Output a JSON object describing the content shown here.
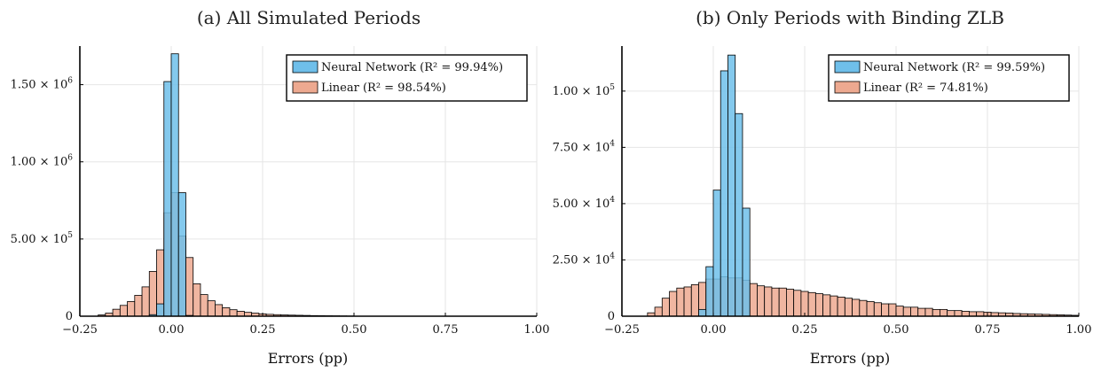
{
  "chart_data": [
    {
      "type": "bar",
      "title": "(a) All Simulated Periods",
      "xlabel": "Errors (pp)",
      "ylabel": "",
      "xlim": [
        -0.25,
        1.0
      ],
      "ylim": [
        0,
        1750000
      ],
      "xticks": [
        -0.25,
        0,
        0.25,
        0.5,
        0.75,
        1.0
      ],
      "xtick_labels": [
        "−0.25",
        "0.00",
        "0.25",
        "0.50",
        "0.75",
        "1.00"
      ],
      "yticks": [
        0,
        500000,
        1000000,
        1500000
      ],
      "ytick_mantissas": [
        "0",
        "5.00 × 10",
        "1.00 × 10",
        "1.50 × 10"
      ],
      "ytick_exponents": [
        "",
        "5",
        "6",
        "6"
      ],
      "grid": true,
      "legend_position": "top-right",
      "bin_width": 0.02,
      "series": [
        {
          "name": "Neural Network (R² = 99.94%)",
          "color": "#6fbfea",
          "bin_starts": [
            -0.06,
            -0.04,
            -0.02,
            0.0,
            0.02,
            0.04
          ],
          "values": [
            10000,
            80000,
            1520000,
            1700000,
            800000,
            5000
          ]
        },
        {
          "name": "Linear (R² = 98.54%)",
          "color": "#eda990",
          "bin_starts": [
            -0.2,
            -0.18,
            -0.16,
            -0.14,
            -0.12,
            -0.1,
            -0.08,
            -0.06,
            -0.04,
            -0.02,
            0.0,
            0.02,
            0.04,
            0.06,
            0.08,
            0.1,
            0.12,
            0.14,
            0.16,
            0.18,
            0.2,
            0.22,
            0.24,
            0.26,
            0.28,
            0.3,
            0.32,
            0.34,
            0.36,
            0.38,
            0.4,
            0.42,
            0.44,
            0.46,
            0.48
          ],
          "values": [
            8000,
            20000,
            45000,
            70000,
            95000,
            135000,
            190000,
            290000,
            430000,
            670000,
            800000,
            520000,
            380000,
            210000,
            140000,
            100000,
            75000,
            55000,
            42000,
            32000,
            25000,
            20000,
            15000,
            12000,
            10000,
            8000,
            7000,
            6000,
            5000,
            4000,
            3500,
            3000,
            2500,
            2000,
            1500
          ]
        }
      ]
    },
    {
      "type": "bar",
      "title": "(b) Only Periods with Binding ZLB",
      "xlabel": "Errors (pp)",
      "ylabel": "",
      "xlim": [
        -0.25,
        1.0
      ],
      "ylim": [
        0,
        120000
      ],
      "xticks": [
        -0.25,
        0,
        0.25,
        0.5,
        0.75,
        1.0
      ],
      "xtick_labels": [
        "−0.25",
        "0.00",
        "0.25",
        "0.50",
        "0.75",
        "1.00"
      ],
      "yticks": [
        0,
        25000,
        50000,
        75000,
        100000
      ],
      "ytick_mantissas": [
        "0",
        "2.50 × 10",
        "5.00 × 10",
        "7.50 × 10",
        "1.00 × 10"
      ],
      "ytick_exponents": [
        "",
        "4",
        "4",
        "4",
        "5"
      ],
      "grid": true,
      "legend_position": "top-right",
      "bin_width": 0.02,
      "series": [
        {
          "name": "Neural Network (R² = 99.59%)",
          "color": "#6fbfea",
          "bin_starts": [
            -0.04,
            -0.02,
            0.0,
            0.02,
            0.04,
            0.06,
            0.08
          ],
          "values": [
            3000,
            22000,
            56000,
            109000,
            116000,
            90000,
            48000
          ]
        },
        {
          "name": "Linear (R² = 74.81%)",
          "color": "#eda990",
          "bin_starts": [
            -0.18,
            -0.16,
            -0.14,
            -0.12,
            -0.1,
            -0.08,
            -0.06,
            -0.04,
            -0.02,
            0.0,
            0.02,
            0.04,
            0.06,
            0.08,
            0.1,
            0.12,
            0.14,
            0.16,
            0.18,
            0.2,
            0.22,
            0.24,
            0.26,
            0.28,
            0.3,
            0.32,
            0.34,
            0.36,
            0.38,
            0.4,
            0.42,
            0.44,
            0.46,
            0.48,
            0.5,
            0.52,
            0.54,
            0.56,
            0.58,
            0.6,
            0.62,
            0.64,
            0.66,
            0.68,
            0.7,
            0.72,
            0.74,
            0.76,
            0.78,
            0.8,
            0.82,
            0.84,
            0.86,
            0.88,
            0.9,
            0.92,
            0.94,
            0.96,
            0.98
          ],
          "values": [
            1500,
            4000,
            8000,
            11000,
            12500,
            13000,
            14000,
            15000,
            16500,
            16500,
            17500,
            17000,
            17000,
            16000,
            14500,
            13500,
            13000,
            12500,
            12500,
            12000,
            11500,
            11000,
            10500,
            10000,
            9500,
            9000,
            8500,
            8000,
            7500,
            7000,
            6500,
            6000,
            5500,
            5500,
            4500,
            4000,
            4000,
            3500,
            3500,
            3000,
            3000,
            2500,
            2500,
            2200,
            2000,
            2000,
            1800,
            1600,
            1500,
            1400,
            1200,
            1100,
            1000,
            900,
            800,
            700,
            600,
            500,
            400
          ]
        }
      ]
    }
  ]
}
